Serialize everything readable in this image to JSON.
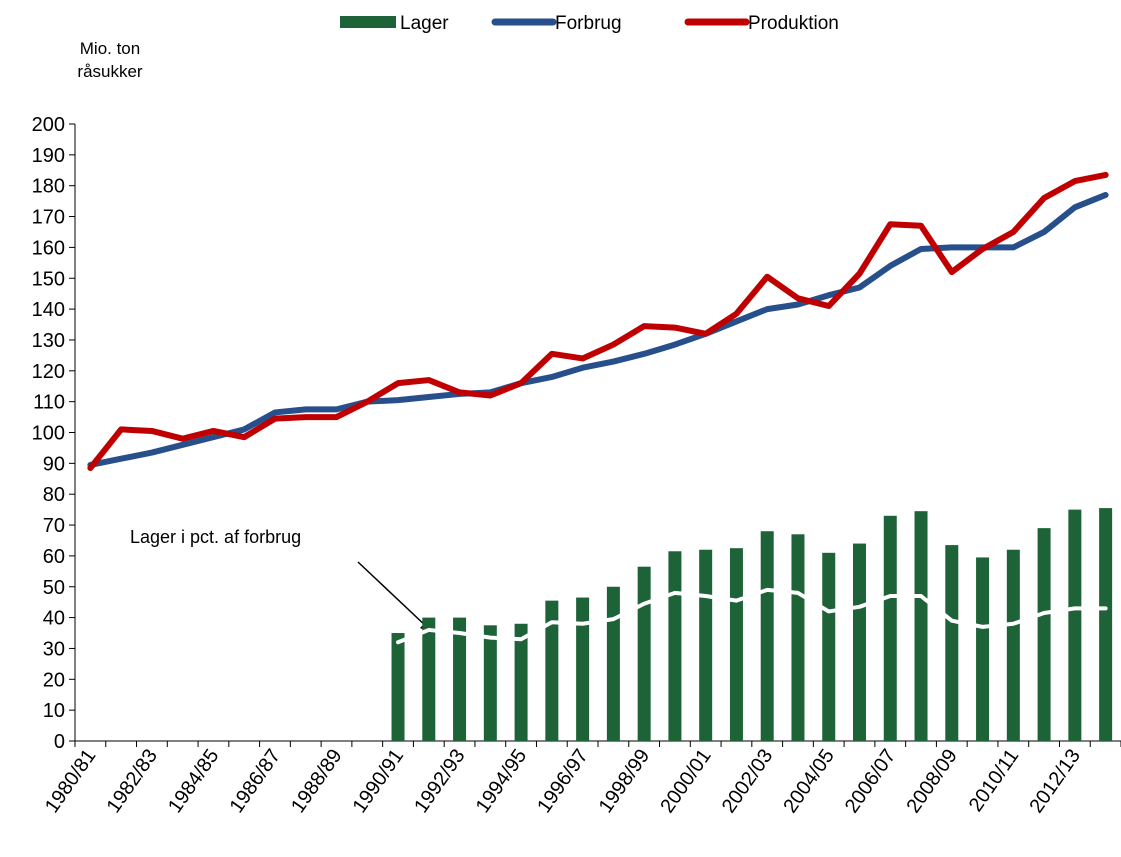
{
  "chart_data": {
    "type": "bar_line",
    "y_label": [
      "Mio. ton",
      "råsukker"
    ],
    "annotation": "Lager i pct. af forbrug",
    "categories": [
      "1980/81",
      null,
      "1982/83",
      null,
      "1984/85",
      null,
      "1986/87",
      null,
      "1988/89",
      null,
      "1990/91",
      null,
      "1992/93",
      null,
      "1994/95",
      null,
      "1996/97",
      null,
      "1998/99",
      null,
      "2000/01",
      null,
      "2002/03",
      null,
      "2004/05",
      null,
      "2006/07",
      null,
      "2008/09",
      null,
      "2010/11",
      null,
      "2012/13",
      null
    ],
    "series": [
      {
        "name": "Lager",
        "type": "bar",
        "color": "#1e6337",
        "values": [
          null,
          null,
          null,
          null,
          null,
          null,
          null,
          null,
          null,
          null,
          35,
          40,
          40,
          37.5,
          38,
          45.5,
          46.5,
          50,
          56.5,
          61.5,
          62,
          62.5,
          68,
          67,
          61,
          64,
          73,
          74.5,
          63.5,
          59.5,
          62,
          69,
          75,
          75.5
        ]
      },
      {
        "name": "Forbrug",
        "type": "line",
        "color": "#264f8b",
        "values": [
          89.5,
          91.5,
          93.5,
          96,
          98.5,
          101,
          106.5,
          107.5,
          107.5,
          110,
          110.5,
          111.5,
          112.5,
          113,
          116,
          118,
          121,
          123,
          125.5,
          128.5,
          132,
          136,
          140,
          141.5,
          144.5,
          147,
          154,
          159.5,
          160,
          160,
          160,
          165,
          173,
          177
        ]
      },
      {
        "name": "Produktion",
        "type": "line",
        "color": "#c00000",
        "values": [
          88.5,
          101,
          100.5,
          98,
          100.5,
          98.5,
          104.5,
          105,
          105,
          110,
          116,
          117,
          113,
          112,
          116,
          125.5,
          124,
          128.5,
          134.5,
          134,
          132,
          138.5,
          150.5,
          143.5,
          141,
          151.5,
          167.5,
          167,
          152,
          159.5,
          165,
          176,
          181.5,
          183.5
        ]
      },
      {
        "type": "line",
        "color": "#ffffff",
        "values": [
          null,
          null,
          null,
          null,
          null,
          null,
          null,
          null,
          null,
          null,
          32,
          36,
          35,
          33.5,
          33,
          38.5,
          38,
          39.5,
          44.5,
          48,
          47,
          45.5,
          49,
          48,
          42,
          43.5,
          47,
          47,
          39,
          37,
          38,
          41.5,
          43,
          43
        ]
      }
    ],
    "ylim": [
      0,
      200
    ],
    "yticks": [
      0,
      10,
      20,
      30,
      40,
      50,
      60,
      70,
      80,
      90,
      100,
      110,
      120,
      130,
      140,
      150,
      160,
      170,
      180,
      190,
      200
    ]
  }
}
